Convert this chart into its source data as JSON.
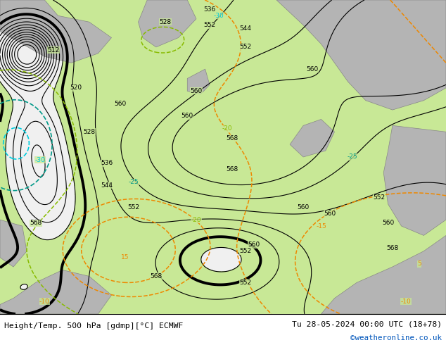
{
  "title_left": "Height/Temp. 500 hPa [gdmp][°C] ECMWF",
  "title_right": "Tu 28-05-2024 00:00 UTC (18+78)",
  "credit": "©weatheronline.co.uk",
  "bg_green": "#c8e896",
  "bg_white": "#f0f0f0",
  "land_gray": "#b4b4b4",
  "land_edge": "#888888",
  "fig_bg": "#ffffff",
  "bottom_bar_color": "#d8d8d8",
  "color_height": "#000000",
  "color_cyan": "#00ccdd",
  "color_teal": "#009988",
  "color_orange": "#ee8800",
  "color_yellow_green": "#88bb00"
}
